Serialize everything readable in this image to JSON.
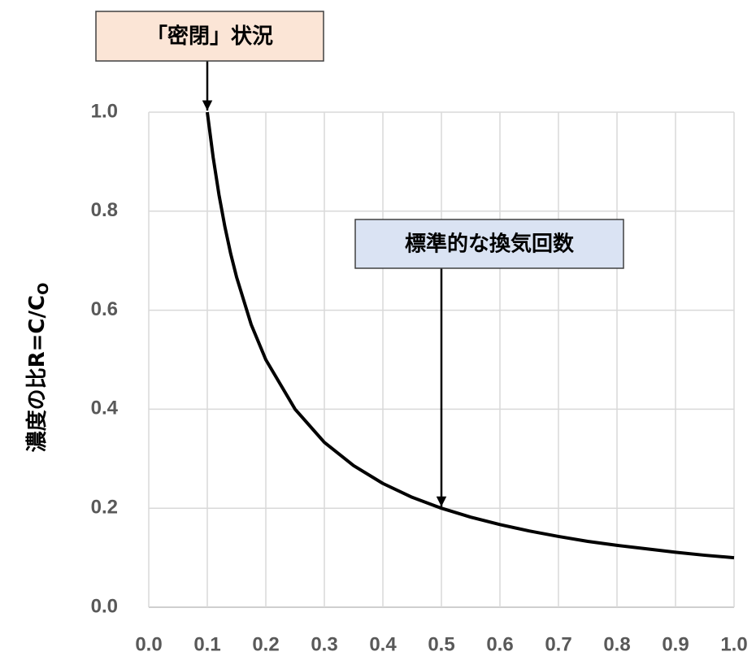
{
  "chart_data": {
    "type": "line",
    "ylabel": "濃度の比R=C/C",
    "ylabel_subscript": "O",
    "x": [
      0.1,
      0.11,
      0.12,
      0.13,
      0.14,
      0.15,
      0.175,
      0.2,
      0.25,
      0.3,
      0.35,
      0.4,
      0.45,
      0.5,
      0.55,
      0.6,
      0.65,
      0.7,
      0.75,
      0.8,
      0.85,
      0.9,
      0.95,
      1.0
    ],
    "series": [
      {
        "color": "#000000",
        "values": [
          1.0,
          0.909,
          0.833,
          0.769,
          0.714,
          0.667,
          0.571,
          0.5,
          0.4,
          0.333,
          0.286,
          0.25,
          0.222,
          0.2,
          0.182,
          0.167,
          0.154,
          0.143,
          0.133,
          0.125,
          0.118,
          0.111,
          0.105,
          0.1
        ]
      }
    ],
    "xlim": [
      0,
      1
    ],
    "ylim": [
      0,
      1
    ],
    "xticks": [
      {
        "value": 0,
        "label": "0.0"
      },
      0.1,
      0.2,
      0.3,
      0.4,
      0.5,
      0.6,
      0.7,
      0.8,
      0.9,
      {
        "value": 1,
        "label": "1.0"
      }
    ],
    "yticks": [
      {
        "value": 0,
        "label": "0.0"
      },
      0.2,
      0.4,
      0.6,
      0.8,
      {
        "value": 1,
        "label": "1.0"
      }
    ],
    "grid": true,
    "annotations": [
      {
        "text": "「密閉」状況",
        "x": 0.1,
        "y": 1.0,
        "color": "#fbe5d6"
      },
      {
        "text": "標準的な換気回数",
        "x": 0.5,
        "y": 0.2,
        "color": "#dae3f3"
      }
    ]
  }
}
